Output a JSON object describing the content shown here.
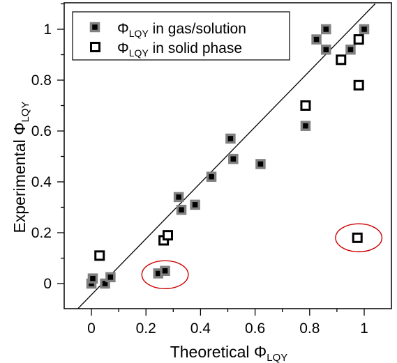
{
  "chart_data": {
    "type": "scatter",
    "xlabel": "Theoretical Φ",
    "xlabel_sub": "LQY",
    "ylabel": "Experimental Φ",
    "ylabel_sub": "LQY",
    "xlim": [
      -0.06,
      1.04
    ],
    "ylim": [
      -0.11,
      1.1
    ],
    "x_ticks": [
      0,
      0.2,
      0.4,
      0.6,
      0.8,
      1
    ],
    "x_tick_labels": [
      "0",
      "0.2",
      "0.4",
      "0.6",
      "0.8",
      "1"
    ],
    "y_ticks": [
      0,
      0.2,
      0.4,
      0.6,
      0.8,
      1
    ],
    "y_tick_labels": [
      "0",
      "0.2",
      "0.4",
      "0.6",
      "0.8",
      "1"
    ],
    "grid": false,
    "legend_position": "top-left",
    "diagonal_line": [
      [
        -0.06,
        -0.11
      ],
      [
        1.04,
        1.1
      ]
    ],
    "colors": {
      "gas_fill": "#000000",
      "gas_edge": "#808080",
      "solid_fill": "#ffffff",
      "solid_edge": "#000000",
      "highlight_ellipse": "#cc0000"
    },
    "series": [
      {
        "name": "Φ",
        "name_sub": "LQY",
        "name_rest": " in gas/solution",
        "marker": "filled-square",
        "points": [
          [
            0.0,
            0.0
          ],
          [
            0.005,
            0.02
          ],
          [
            0.05,
            0.0
          ],
          [
            0.07,
            0.025
          ],
          [
            0.245,
            0.04
          ],
          [
            0.27,
            0.05
          ],
          [
            0.32,
            0.34
          ],
          [
            0.33,
            0.29
          ],
          [
            0.38,
            0.31
          ],
          [
            0.44,
            0.42
          ],
          [
            0.51,
            0.57
          ],
          [
            0.52,
            0.49
          ],
          [
            0.62,
            0.47
          ],
          [
            0.785,
            0.62
          ],
          [
            0.825,
            0.96
          ],
          [
            0.86,
            1.0
          ],
          [
            0.86,
            0.92
          ],
          [
            0.95,
            0.92
          ],
          [
            1.0,
            1.0
          ]
        ]
      },
      {
        "name": "Φ",
        "name_sub": "LQY",
        "name_rest": " in solid phase",
        "marker": "open-square",
        "points": [
          [
            0.03,
            0.11
          ],
          [
            0.265,
            0.17
          ],
          [
            0.28,
            0.19
          ],
          [
            0.785,
            0.7
          ],
          [
            0.915,
            0.88
          ],
          [
            0.98,
            0.96
          ],
          [
            0.98,
            0.78
          ],
          [
            0.975,
            0.18
          ]
        ]
      }
    ],
    "annotations": [
      {
        "type": "ellipse",
        "center": [
          0.27,
          0.035
        ],
        "radii": [
          0.085,
          0.055
        ]
      },
      {
        "type": "ellipse",
        "center": [
          0.98,
          0.18
        ],
        "radii": [
          0.085,
          0.055
        ]
      }
    ]
  }
}
